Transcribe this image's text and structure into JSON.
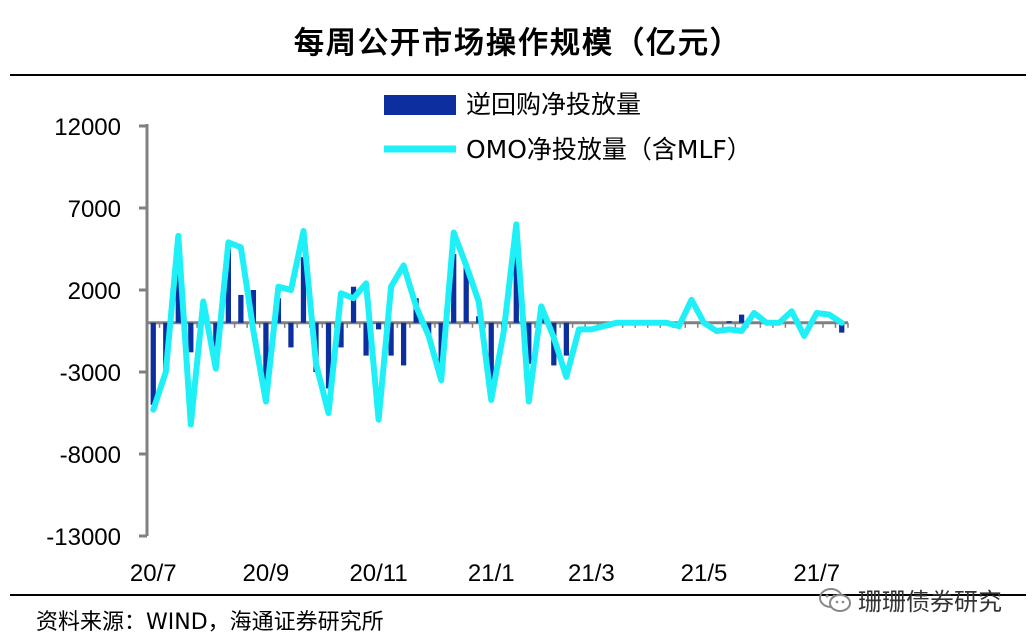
{
  "page": {
    "title": "每周公开市场操作规模（亿元）",
    "source": "资料来源：WIND，海通证券研究所",
    "watermark": "珊珊债券研究"
  },
  "chart_data": {
    "type": "bar+line",
    "title": "每周公开市场操作规模（亿元）",
    "ylim": [
      -13000,
      12000
    ],
    "yticks": [
      12000,
      7000,
      2000,
      -3000,
      -8000,
      -13000
    ],
    "xtick_labels": [
      "20/7",
      "20/9",
      "20/11",
      "21/1",
      "21/3",
      "21/5",
      "21/7"
    ],
    "xtick_week_index": [
      0,
      9,
      18,
      27,
      35,
      44,
      53
    ],
    "legend": {
      "bar": "逆回购净投放量",
      "line": "OMO净投放量（含MLF）"
    },
    "colors": {
      "bar": "#0c2e9e",
      "line": "#1ff0f7",
      "axis": "#808080"
    },
    "series": [
      {
        "name": "逆回购净投放量",
        "type": "bar",
        "values": [
          -5000,
          -3000,
          3800,
          -1800,
          500,
          -1500,
          4500,
          1700,
          2000,
          -3500,
          1500,
          -1500,
          4000,
          -3000,
          -4000,
          -1500,
          2200,
          -2000,
          -400,
          -2000,
          -2600,
          1500,
          -800,
          -2500,
          4200,
          3500,
          400,
          -4000,
          -600,
          4500,
          -2500,
          900,
          -2600,
          -2000,
          0,
          0,
          0,
          0,
          0,
          0,
          0,
          0,
          0,
          0,
          0,
          0,
          100,
          500,
          0,
          0,
          0,
          0,
          0,
          0,
          0,
          -600
        ]
      },
      {
        "name": "OMO净投放量（含MLF）",
        "type": "line",
        "values": [
          -5300,
          -3000,
          5300,
          -6200,
          1300,
          -2800,
          4900,
          4600,
          -500,
          -4800,
          2200,
          2000,
          5600,
          -2500,
          -5500,
          1800,
          1500,
          2400,
          -5900,
          2200,
          3500,
          1000,
          -800,
          -3500,
          5500,
          3500,
          1300,
          -4700,
          -500,
          6000,
          -4800,
          1000,
          -900,
          -3300,
          -400,
          -400,
          -200,
          0,
          0,
          0,
          0,
          0,
          -200,
          1400,
          0,
          -500,
          -400,
          -500,
          600,
          0,
          0,
          700,
          -800,
          600,
          500,
          0
        ]
      }
    ]
  }
}
